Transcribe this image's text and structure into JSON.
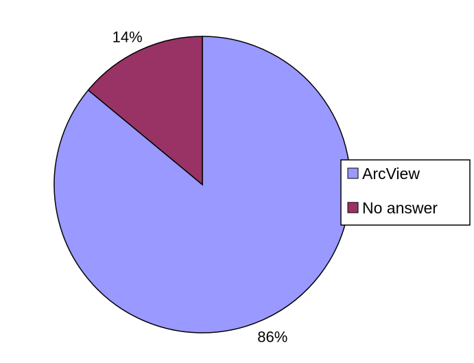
{
  "chart_data": {
    "type": "pie",
    "title": "",
    "categories": [
      "ArcView",
      "No answer"
    ],
    "values": [
      86,
      14
    ],
    "unit": "%",
    "data_labels": [
      "86%",
      "14%"
    ],
    "colors": [
      "#9999ff",
      "#993366"
    ],
    "outline_color": "#000000",
    "legend_placement": "right",
    "start_angle": "12 o'clock",
    "direction": "clockwise, largest slice first"
  }
}
